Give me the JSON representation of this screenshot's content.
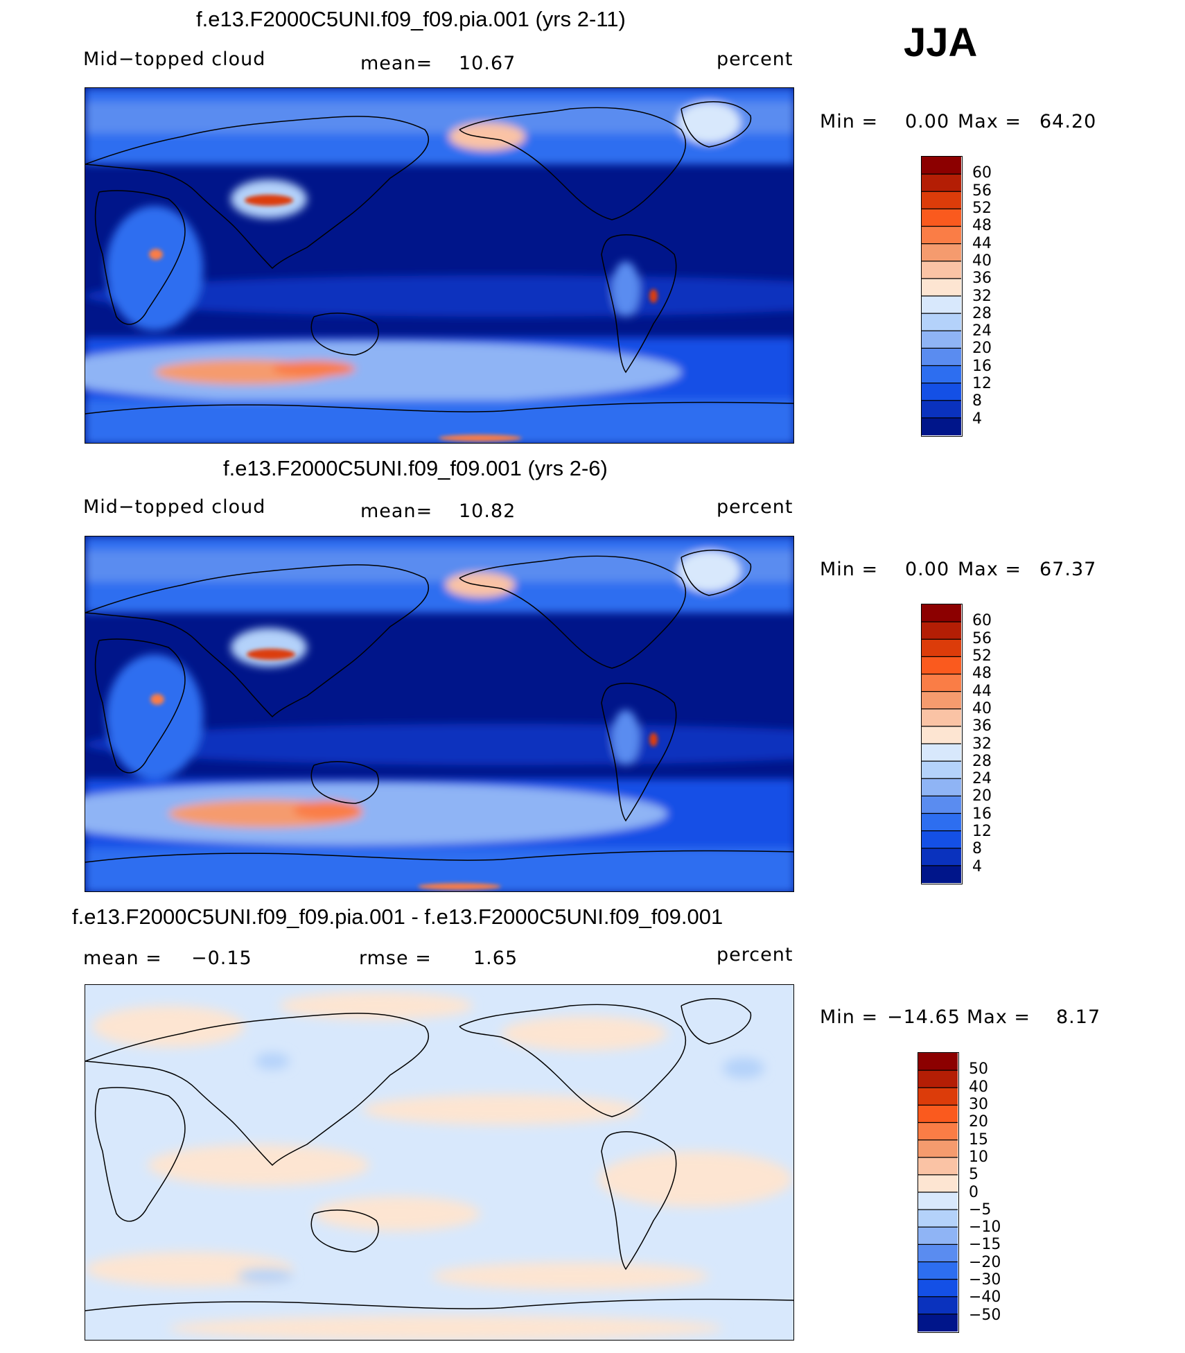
{
  "season": "JJA",
  "colors": {
    "deep_blue": "#00158a",
    "mid_blue": "#1450e6",
    "light_blue": "#8fb4f5",
    "pale_blue": "#d8e8fc",
    "pale_peach": "#fde5d2",
    "salmon": "#f6a07c",
    "red": "#d52810",
    "dark_red": "#8c0000"
  },
  "chart_data": [
    {
      "type": "heatmap",
      "title": "f.e13.F2000C5UNI.f09_f09.pia.001 (yrs 2-11)",
      "variable": "Mid−topped cloud",
      "units": "percent",
      "mean_label": "mean=",
      "mean_value": "10.67",
      "min_label": "Min =",
      "min_value": "0.00",
      "max_label": "Max =",
      "max_value": "64.20",
      "colorbar": {
        "levels": [
          "60",
          "56",
          "52",
          "48",
          "44",
          "40",
          "36",
          "32",
          "28",
          "24",
          "20",
          "16",
          "12",
          "8",
          "4"
        ],
        "colors": [
          "#8c0000",
          "#b41e05",
          "#dc3c0a",
          "#fa5a1e",
          "#fa7d46",
          "#f59b6e",
          "#fac3a5",
          "#fde5d2",
          "#d8e8fc",
          "#b4d2fa",
          "#8fb4f5",
          "#5a8cf0",
          "#2d6ef0",
          "#1450e6",
          "#0a32be",
          "#00158a"
        ]
      }
    },
    {
      "type": "heatmap",
      "title": "f.e13.F2000C5UNI.f09_f09.001 (yrs 2-6)",
      "variable": "Mid−topped cloud",
      "units": "percent",
      "mean_label": "mean=",
      "mean_value": "10.82",
      "min_label": "Min =",
      "min_value": "0.00",
      "max_label": "Max =",
      "max_value": "67.37",
      "colorbar": {
        "levels": [
          "60",
          "56",
          "52",
          "48",
          "44",
          "40",
          "36",
          "32",
          "28",
          "24",
          "20",
          "16",
          "12",
          "8",
          "4"
        ],
        "colors": [
          "#8c0000",
          "#b41e05",
          "#dc3c0a",
          "#fa5a1e",
          "#fa7d46",
          "#f59b6e",
          "#fac3a5",
          "#fde5d2",
          "#d8e8fc",
          "#b4d2fa",
          "#8fb4f5",
          "#5a8cf0",
          "#2d6ef0",
          "#1450e6",
          "#0a32be",
          "#00158a"
        ]
      }
    },
    {
      "type": "heatmap",
      "title": "f.e13.F2000C5UNI.f09_f09.pia.001 - f.e13.F2000C5UNI.f09_f09.001",
      "units": "percent",
      "mean_label": "mean =",
      "mean_value": "−0.15",
      "rmse_label": "rmse =",
      "rmse_value": "1.65",
      "min_label": "Min =",
      "min_value": "−14.65",
      "max_label": "Max =",
      "max_value": "8.17",
      "colorbar": {
        "levels": [
          "50",
          "40",
          "30",
          "20",
          "15",
          "10",
          "5",
          "0",
          "−5",
          "−10",
          "−15",
          "−20",
          "−30",
          "−40",
          "−50"
        ],
        "colors": [
          "#8c0000",
          "#b41e05",
          "#dc3c0a",
          "#fa5a1e",
          "#fa7d46",
          "#f59b6e",
          "#fac3a5",
          "#fde5d2",
          "#d8e8fc",
          "#b4d2fa",
          "#8fb4f5",
          "#5a8cf0",
          "#2d6ef0",
          "#1450e6",
          "#0a32be",
          "#00158a"
        ]
      }
    }
  ]
}
